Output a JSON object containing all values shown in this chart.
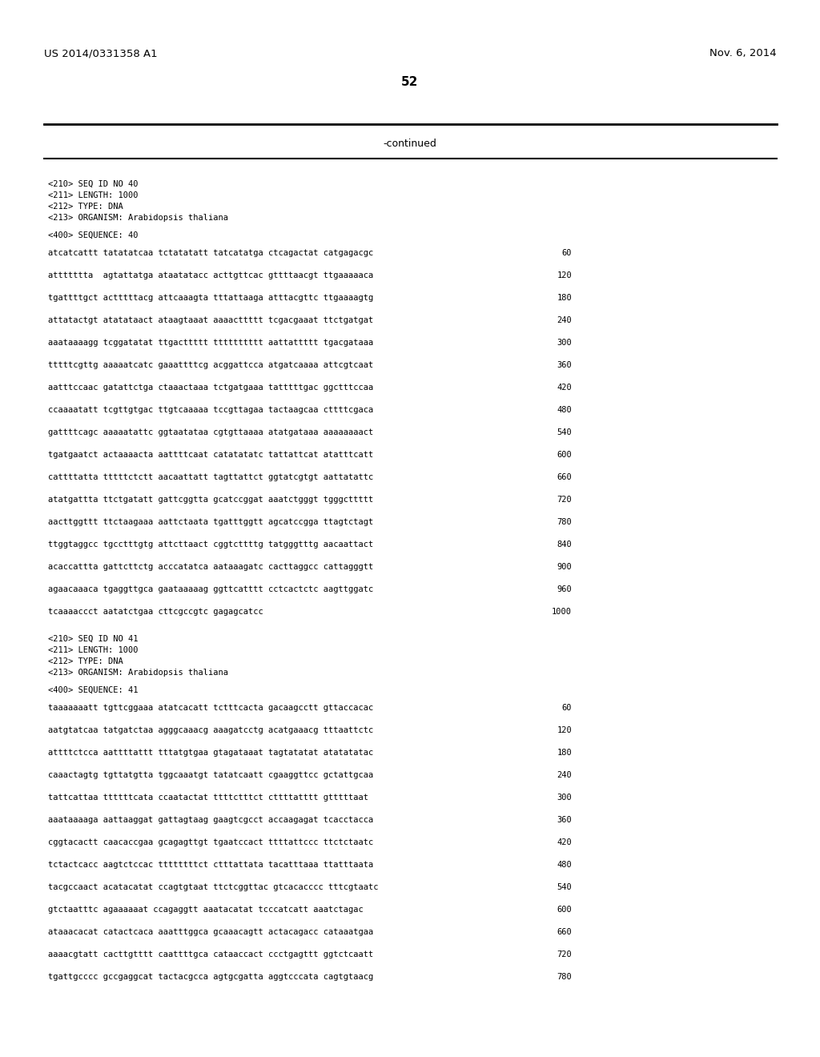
{
  "header_left": "US 2014/0331358 A1",
  "header_right": "Nov. 6, 2014",
  "page_number": "52",
  "continued_text": "-continued",
  "bg_color": "#ffffff",
  "text_color": "#000000",
  "seq40_header": [
    "<210> SEQ ID NO 40",
    "<211> LENGTH: 1000",
    "<212> TYPE: DNA",
    "<213> ORGANISM: Arabidopsis thaliana"
  ],
  "seq40_label": "<400> SEQUENCE: 40",
  "seq40_lines": [
    [
      "atcatcattt tatatatcaa tctatatatt tatcatatga ctcagactat catgagacgc",
      "60"
    ],
    [
      "attttttta  agtattatga ataatatacc acttgttcac gttttaacgt ttgaaaaaca",
      "120"
    ],
    [
      "tgattttgct actttttacg attcaaagta tttattaaga atttacgttc ttgaaaagtg",
      "180"
    ],
    [
      "attatactgt atatataact ataagtaaat aaaacttttt tcgacgaaat ttctgatgat",
      "240"
    ],
    [
      "aaataaaagg tcggatatat ttgacttttt tttttttttt aattattttt tgacgataaa",
      "300"
    ],
    [
      "tttttcgttg aaaaatcatc gaaattttcg acggattcca atgatcaaaa attcgtcaat",
      "360"
    ],
    [
      "aatttccaac gatattctga ctaaactaaa tctgatgaaa tatttttgac ggctttccaa",
      "420"
    ],
    [
      "ccaaaatatt tcgttgtgac ttgtcaaaaa tccgttagaa tactaagcaa cttttcgaca",
      "480"
    ],
    [
      "gattttcagc aaaaatattc ggtaatataa cgtgttaaaa atatgataaa aaaaaaaact",
      "540"
    ],
    [
      "tgatgaatct actaaaacta aattttcaat catatatatc tattattcat atatttcatt",
      "600"
    ],
    [
      "cattttatta tttttctctt aacaattatt tagttattct ggtatcgtgt aattatattc",
      "660"
    ],
    [
      "atatgattta ttctgatatt gattcggtta gcatccggat aaatctgggt tgggcttttt",
      "720"
    ],
    [
      "aacttggttt ttctaagaaa aattctaata tgatttggtt agcatccgga ttagtctagt",
      "780"
    ],
    [
      "ttggtaggcc tgcctttgtg attcttaact cggtcttttg tatgggtttg aacaattact",
      "840"
    ],
    [
      "acaccattta gattcttctg acccatatca aataaagatc cacttaggcc cattagggtt",
      "900"
    ],
    [
      "agaacaaaca tgaggttgca gaataaaaag ggttcatttt cctcactctc aagttggatc",
      "960"
    ],
    [
      "tcaaaaccct aatatctgaa cttcgccgtc gagagcatcc",
      "1000"
    ]
  ],
  "seq41_header": [
    "<210> SEQ ID NO 41",
    "<211> LENGTH: 1000",
    "<212> TYPE: DNA",
    "<213> ORGANISM: Arabidopsis thaliana"
  ],
  "seq41_label": "<400> SEQUENCE: 41",
  "seq41_lines": [
    [
      "taaaaaaatt tgttcggaaa atatcacatt tctttcacta gacaagcctt gttaccacac",
      "60"
    ],
    [
      "aatgtatcaa tatgatctaa agggcaaacg aaagatcctg acatgaaacg tttaattctc",
      "120"
    ],
    [
      "attttctcca aattttattt tttatgtgaa gtagataaat tagtatatat atatatatac",
      "180"
    ],
    [
      "caaactagtg tgttatgtta tggcaaatgt tatatcaatt cgaaggttcc gctattgcaa",
      "240"
    ],
    [
      "tattcattaa ttttttcata ccaatactat ttttctttct cttttatttt gtttttaat",
      "300"
    ],
    [
      "aaataaaaga aattaaggat gattagtaag gaagtcgcct accaagagat tcacctacca",
      "360"
    ],
    [
      "cggtacactt caacaccgaa gcagagttgt tgaatccact ttttattccc ttctctaatc",
      "420"
    ],
    [
      "tctactcacc aagtctccac ttttttttct ctttattata tacatttaaa ttatttaata",
      "480"
    ],
    [
      "tacgccaact acatacatat ccagtgtaat ttctcggttac gtcacacccc tttcgtaatc",
      "540"
    ],
    [
      "gtctaatttc agaaaaaat ccagaggtt aaatacatat tcccatcatt aaatctagac",
      "600"
    ],
    [
      "ataaacacat catactcaca aaatttggca gcaaacagtt actacagacc cataaatgaa",
      "660"
    ],
    [
      "aaaacgtatt cacttgtttt caattttgca cataaccact ccctgagttt ggtctcaatt",
      "720"
    ],
    [
      "tgattgcccc gccgaggcat tactacgcca agtgcgatta aggtcccata cagtgtaacg",
      "780"
    ]
  ]
}
